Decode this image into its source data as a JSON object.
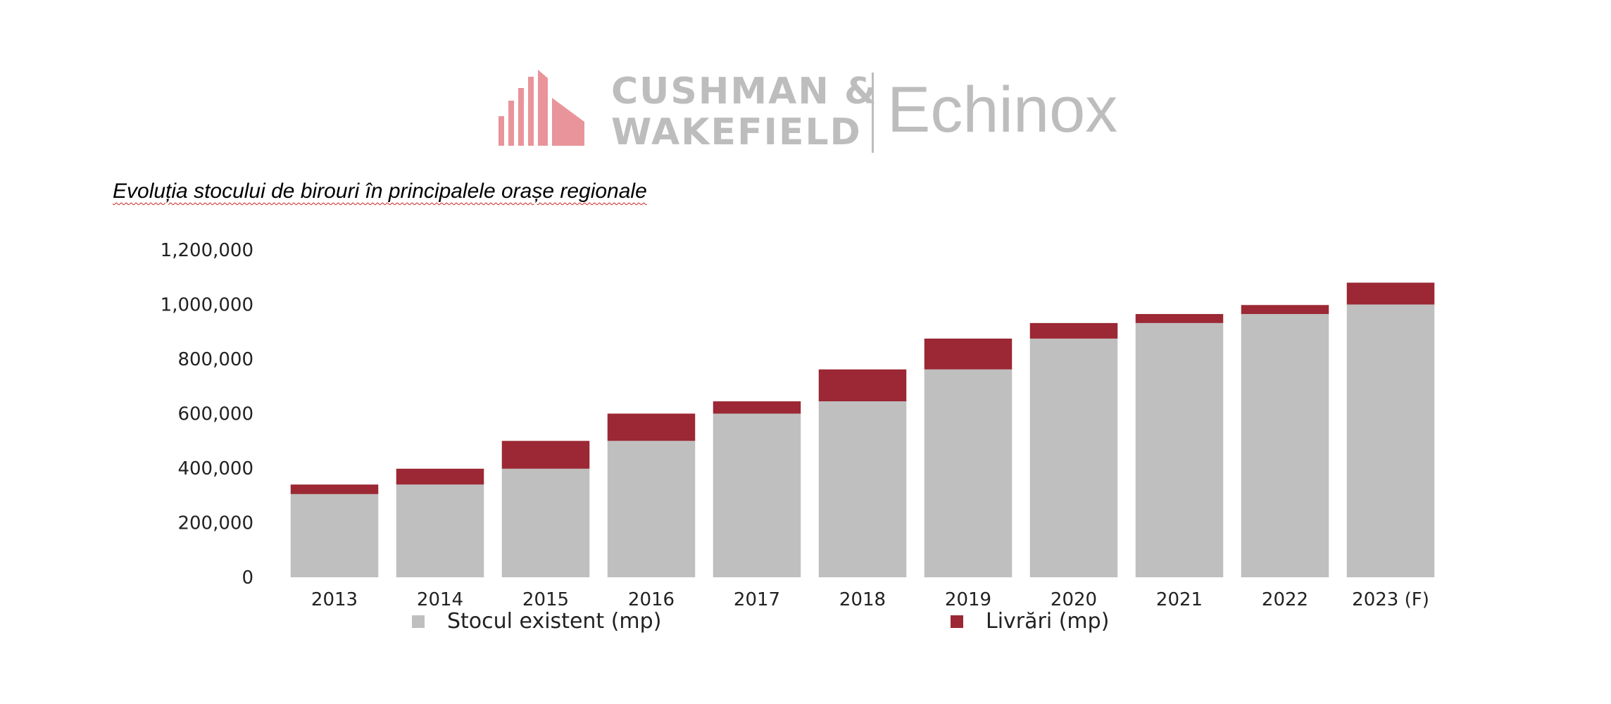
{
  "logo": {
    "brand_line1": "CUSHMAN &",
    "brand_line2": "WAKEFIELD",
    "partner": "Echinox"
  },
  "colors": {
    "stock": "#bfbfbf",
    "deliveries": "#9b2834",
    "logo_red": "#e8949a",
    "logo_gray": "#bdbdbd"
  },
  "chart_data": {
    "type": "bar",
    "stacked": true,
    "title": "Evoluția stocului de birouri în principalele orașe regionale",
    "xlabel": "",
    "ylabel": "",
    "categories": [
      "2013",
      "2014",
      "2015",
      "2016",
      "2017",
      "2018",
      "2019",
      "2020",
      "2021",
      "2022",
      "2023 (F)"
    ],
    "ylim": [
      0,
      1200000
    ],
    "yticks": [
      0,
      200000,
      400000,
      600000,
      800000,
      1000000,
      1200000
    ],
    "ytick_labels": [
      "0",
      "200,000",
      "400,000",
      "600,000",
      "800,000",
      "1,000,000",
      "1,200,000"
    ],
    "grid": false,
    "legend_position": "bottom",
    "series": [
      {
        "name": "Stocul existent (mp)",
        "color": "#bfbfbf",
        "values": [
          305000,
          340000,
          398000,
          500000,
          600000,
          645000,
          762000,
          875000,
          932000,
          965000,
          1000000
        ]
      },
      {
        "name": "Livrări (mp)",
        "color": "#9b2834",
        "values": [
          35000,
          58000,
          102000,
          100000,
          45000,
          117000,
          113000,
          57000,
          33000,
          33000,
          80000
        ]
      }
    ]
  }
}
